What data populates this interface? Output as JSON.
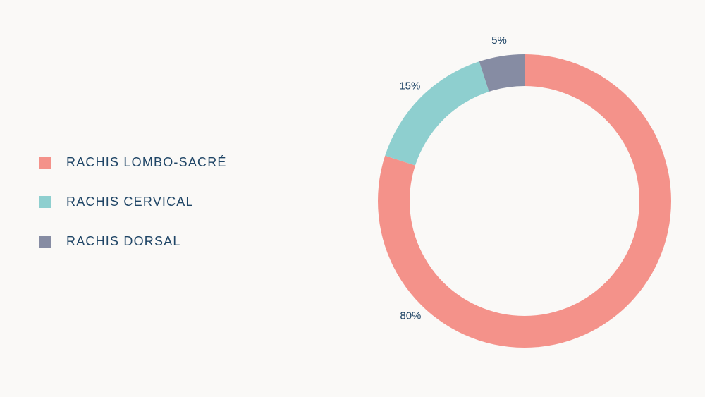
{
  "chart_data": {
    "type": "pie",
    "donut": true,
    "legend_position": "left",
    "categories": [
      "RACHIS LOMBO-SACRÉ",
      "RACHIS CERVICAL",
      "RACHIS DORSAL"
    ],
    "values": [
      80,
      15,
      5
    ],
    "value_labels": [
      "80%",
      "15%",
      "5%"
    ],
    "colors": [
      "#f4928a",
      "#8ecfcf",
      "#868ca3"
    ],
    "label_color": "#1f4566"
  }
}
